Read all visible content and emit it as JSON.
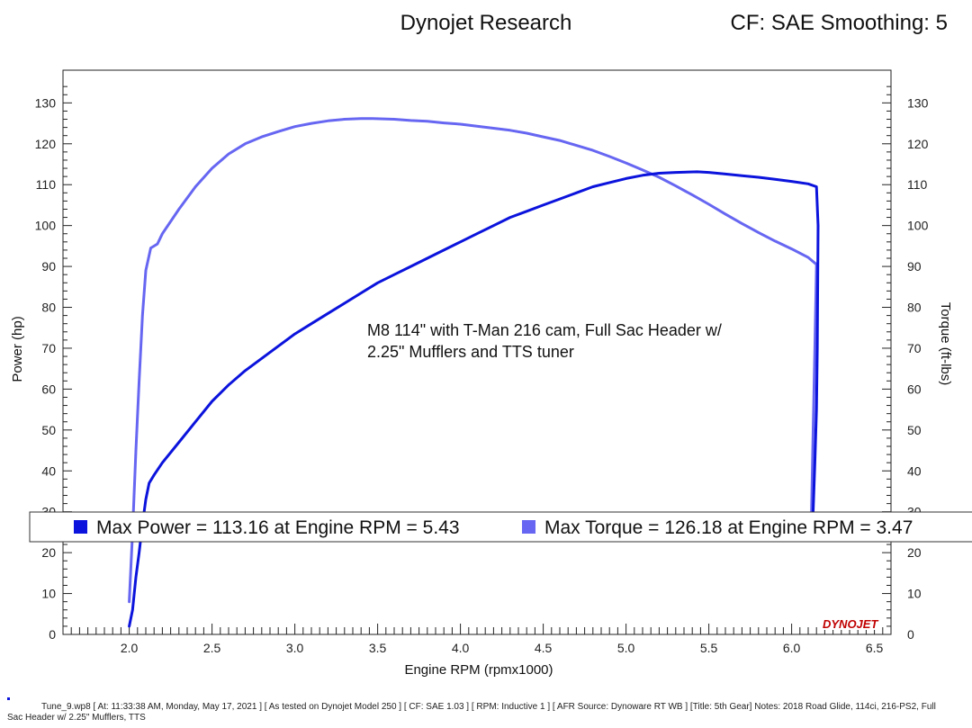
{
  "header": {
    "title": "Dynojet Research",
    "settings": "CF: SAE Smoothing: 5"
  },
  "footer": {
    "line1": "Tune_9.wp8 [ At: 11:33:38 AM, Monday, May 17, 2021 ] [ As tested on Dynojet Model 250 ] [ CF: SAE 1.03 ] [ RPM: Inductive 1 ] [ AFR Source: Dynoware RT WB ] [Title: 5th Gear]  Notes: 2018 Road Glide, 114ci, 216-PS2, Full",
    "line2": "Sac Header w/ 2.25\" Mufflers, TTS"
  },
  "logo": "DYNOJET",
  "chart_data": {
    "type": "line",
    "xlabel": "Engine RPM (rpmx1000)",
    "ylabel": "Power (hp)",
    "y2label": "Torque (ft-lbs)",
    "xlim": [
      1.6,
      6.6
    ],
    "ylim": [
      0,
      138
    ],
    "y2lim": [
      0,
      138
    ],
    "x_ticks": [
      "2.0",
      "2.5",
      "3.0",
      "3.5",
      "4.0",
      "4.5",
      "5.0",
      "5.5",
      "6.0",
      "6.5"
    ],
    "y_ticks": [
      "0",
      "10",
      "20",
      "30",
      "40",
      "50",
      "60",
      "70",
      "80",
      "90",
      "100",
      "110",
      "120",
      "130"
    ],
    "y2_ticks": [
      "0",
      "10",
      "20",
      "30",
      "40",
      "50",
      "60",
      "70",
      "80",
      "90",
      "100",
      "110",
      "120",
      "130"
    ],
    "grid": false,
    "annotation": [
      "M8 114\" with T-Man 216 cam, Full Sac Header w/",
      "2.25\" Mufflers and TTS tuner"
    ],
    "colors": {
      "power": "#0b13dc",
      "torque": "#6666f2"
    },
    "legend": [
      {
        "label": "Max Power = 113.16 at Engine RPM = 5.43",
        "color": "#0b13dc"
      },
      {
        "label": "Max Torque = 126.18 at Engine RPM = 3.47",
        "color": "#6666f2"
      }
    ],
    "series": [
      {
        "key": "power",
        "values": [
          [
            2.0,
            2
          ],
          [
            2.02,
            6
          ],
          [
            2.04,
            14
          ],
          [
            2.06,
            20
          ],
          [
            2.08,
            27
          ],
          [
            2.1,
            33
          ],
          [
            2.12,
            37
          ],
          [
            2.15,
            39
          ],
          [
            2.2,
            42
          ],
          [
            2.3,
            47
          ],
          [
            2.4,
            52
          ],
          [
            2.5,
            57
          ],
          [
            2.6,
            61
          ],
          [
            2.7,
            64.5
          ],
          [
            2.8,
            67.5
          ],
          [
            2.9,
            70.5
          ],
          [
            3.0,
            73.5
          ],
          [
            3.1,
            76
          ],
          [
            3.2,
            78.5
          ],
          [
            3.3,
            81
          ],
          [
            3.4,
            83.5
          ],
          [
            3.5,
            86
          ],
          [
            3.6,
            88
          ],
          [
            3.7,
            90
          ],
          [
            3.8,
            92
          ],
          [
            3.9,
            94
          ],
          [
            4.0,
            96
          ],
          [
            4.1,
            98
          ],
          [
            4.2,
            100
          ],
          [
            4.3,
            102
          ],
          [
            4.4,
            103.5
          ],
          [
            4.5,
            105
          ],
          [
            4.6,
            106.5
          ],
          [
            4.7,
            108
          ],
          [
            4.8,
            109.5
          ],
          [
            4.9,
            110.5
          ],
          [
            5.0,
            111.5
          ],
          [
            5.1,
            112.3
          ],
          [
            5.2,
            112.8
          ],
          [
            5.3,
            113
          ],
          [
            5.43,
            113.16
          ],
          [
            5.5,
            113
          ],
          [
            5.6,
            112.6
          ],
          [
            5.7,
            112.2
          ],
          [
            5.8,
            111.8
          ],
          [
            5.9,
            111.3
          ],
          [
            6.0,
            110.8
          ],
          [
            6.1,
            110.2
          ],
          [
            6.15,
            109.5
          ],
          [
            6.16,
            100
          ],
          [
            6.155,
            70
          ],
          [
            6.15,
            55
          ],
          [
            6.14,
            42
          ],
          [
            6.13,
            30
          ]
        ]
      },
      {
        "key": "torque",
        "values": [
          [
            2.0,
            8
          ],
          [
            2.02,
            25
          ],
          [
            2.04,
            45
          ],
          [
            2.06,
            62
          ],
          [
            2.08,
            78
          ],
          [
            2.1,
            89
          ],
          [
            2.13,
            94.5
          ],
          [
            2.17,
            95.5
          ],
          [
            2.2,
            98
          ],
          [
            2.3,
            104
          ],
          [
            2.4,
            109.5
          ],
          [
            2.5,
            114
          ],
          [
            2.6,
            117.5
          ],
          [
            2.7,
            120
          ],
          [
            2.8,
            121.7
          ],
          [
            2.9,
            123
          ],
          [
            3.0,
            124.2
          ],
          [
            3.1,
            125
          ],
          [
            3.2,
            125.6
          ],
          [
            3.3,
            126
          ],
          [
            3.4,
            126.15
          ],
          [
            3.47,
            126.18
          ],
          [
            3.6,
            126
          ],
          [
            3.7,
            125.7
          ],
          [
            3.8,
            125.5
          ],
          [
            3.9,
            125.1
          ],
          [
            4.0,
            124.8
          ],
          [
            4.1,
            124.3
          ],
          [
            4.2,
            123.8
          ],
          [
            4.3,
            123.3
          ],
          [
            4.4,
            122.6
          ],
          [
            4.5,
            121.7
          ],
          [
            4.6,
            120.8
          ],
          [
            4.7,
            119.6
          ],
          [
            4.8,
            118.4
          ],
          [
            4.9,
            116.9
          ],
          [
            5.0,
            115.3
          ],
          [
            5.1,
            113.6
          ],
          [
            5.2,
            111.8
          ],
          [
            5.3,
            109.7
          ],
          [
            5.4,
            107.5
          ],
          [
            5.5,
            105.2
          ],
          [
            5.6,
            102.8
          ],
          [
            5.7,
            100.5
          ],
          [
            5.8,
            98.3
          ],
          [
            5.9,
            96.2
          ],
          [
            6.0,
            94.3
          ],
          [
            6.1,
            92.2
          ],
          [
            6.15,
            90.5
          ],
          [
            6.14,
            70
          ],
          [
            6.13,
            50
          ],
          [
            6.125,
            40
          ],
          [
            6.12,
            30
          ]
        ]
      }
    ]
  }
}
